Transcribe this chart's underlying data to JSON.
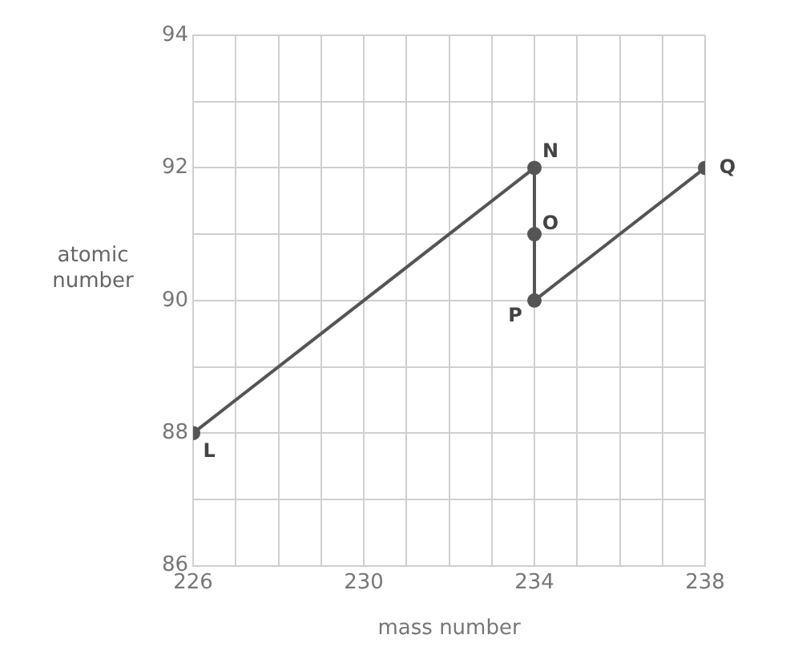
{
  "chart_data": {
    "type": "line",
    "xlabel": "mass number",
    "ylabel": "atomic number",
    "x": [
      226,
      234,
      234,
      234,
      238
    ],
    "series": [
      {
        "color": "#555555",
        "values": [
          88,
          92,
          91,
          90,
          92
        ]
      }
    ],
    "annotations": [
      {
        "text": "L",
        "x": 226,
        "y": 88
      },
      {
        "text": "N",
        "x": 234,
        "y": 92
      },
      {
        "text": "O",
        "x": 234,
        "y": 91
      },
      {
        "text": "P",
        "x": 234,
        "y": 90
      },
      {
        "text": "Q",
        "x": 238,
        "y": 92
      }
    ],
    "xlim": [
      226,
      238
    ],
    "ylim": [
      86,
      94
    ],
    "xticks": [
      226,
      {
        "value": 227,
        "label": null
      },
      {
        "value": 228,
        "label": null
      },
      {
        "value": 229,
        "label": null
      },
      230,
      {
        "value": 231,
        "label": null
      },
      {
        "value": 232,
        "label": null
      },
      {
        "value": 233,
        "label": null
      },
      234,
      {
        "value": 235,
        "label": null
      },
      {
        "value": 236,
        "label": null
      },
      {
        "value": 237,
        "label": null
      },
      238
    ],
    "yticks": [
      86,
      {
        "value": 87,
        "label": null
      },
      88,
      {
        "value": 89,
        "label": null
      },
      90,
      {
        "value": 91,
        "label": null
      },
      92,
      {
        "value": 93,
        "label": null
      },
      94
    ],
    "grid": true,
    "marker": "circle",
    "line_style": "solid",
    "legend": false
  }
}
